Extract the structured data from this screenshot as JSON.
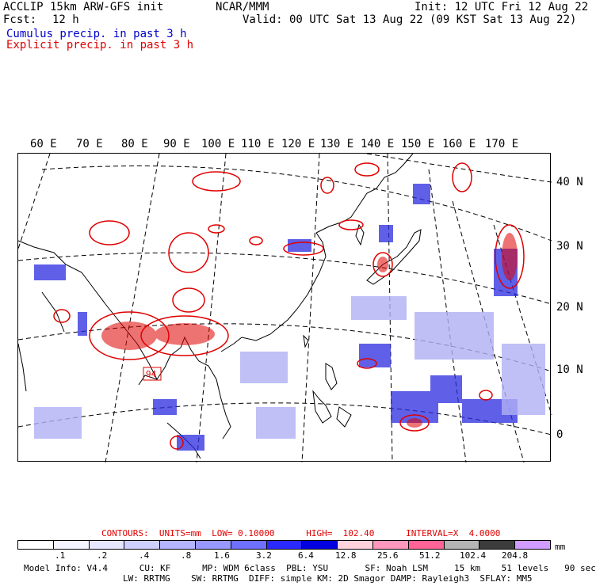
{
  "header": {
    "model": "ACCLIP 15km ARW-GFS init",
    "forecast_label": "Fcst:",
    "forecast_hours": "12 h",
    "center": "NCAR/MMM",
    "init": "Init: 12 UTC Fri 12 Aug 22",
    "valid": "Valid: 00 UTC Sat 13 Aug 22 (09 KST Sat 13 Aug 22)",
    "legend_cumulus": "Cumulus precip. in past 3 h",
    "legend_explicit": "Explicit precip. in past 3 h"
  },
  "map": {
    "longitude_labels": [
      "60 E",
      "70 E",
      "80 E",
      "90 E",
      "100 E",
      "110 E",
      "120 E",
      "130 E",
      "140 E",
      "150 E",
      "160 E",
      "170 E"
    ],
    "latitude_labels": [
      "40 N",
      "30 N",
      "20 N",
      "10 N",
      "0"
    ],
    "marker": "94",
    "colors": {
      "explicit": "#e00000",
      "cumulus": "#2a2ae0",
      "coastline": "#000000",
      "grid": "#000000"
    }
  },
  "contours_line": "CONTOURS:  UNITS=mm  LOW= 0.10000      HIGH=  102.40      INTERVAL=X  4.0000",
  "colorbar": {
    "colors": [
      "#ffffff",
      "#f4f4ff",
      "#e6e6ff",
      "#cfcfff",
      "#b4b4ff",
      "#9898ff",
      "#7070ff",
      "#2a2aff",
      "#0000e0",
      "#ffd2dc",
      "#ff96bc",
      "#ff6496",
      "#b4b4b4",
      "#3c3c3c",
      "#d29bff"
    ],
    "ticks": [
      ".1",
      ".2",
      ".4",
      ".8",
      "1.6",
      "3.2",
      "6.4",
      "12.8",
      "25.6",
      "51.2",
      "102.4",
      "204.8"
    ],
    "unit": "mm"
  },
  "footer": {
    "line1": "Model Info: V4.4      CU: KF      MP: WDM 6class  PBL: YSU       SF: Noah LSM     15 km    51 levels   90 sec",
    "line2": "LW: RRTMG    SW: RRTMG  DIFF: simple KM: 2D Smagor DAMP: Rayleigh3  SFLAY: MM5"
  }
}
